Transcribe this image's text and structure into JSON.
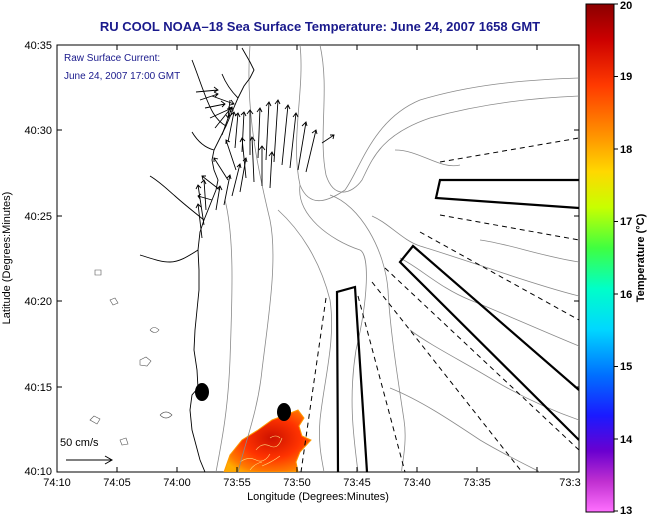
{
  "title": "RU COOL   NOAA–18  Sea Surface Temperature:  June 24, 2007 1658 GMT",
  "legend": {
    "line1": "Raw Surface Current:",
    "line2": "June 24, 2007 17:00 GMT",
    "scale_label": "50 cm/s"
  },
  "axes": {
    "xlabel": "Longitude (Degrees:Minutes)",
    "ylabel": "Latitude (Degrees:Minutes)",
    "x_ticks": [
      "74:10",
      "74:05",
      "74:00",
      "73:55",
      "73:50",
      "73:45",
      "73:40",
      "73:35",
      "73:3"
    ],
    "y_ticks": [
      "40:35",
      "40:30",
      "40:25",
      "40:20",
      "40:15",
      "40:10"
    ]
  },
  "colorbar": {
    "label": "Temperature (°C)",
    "min": 13,
    "max": 20,
    "ticks": [
      "20",
      "19",
      "18",
      "17",
      "16",
      "15",
      "14",
      "13"
    ],
    "colors": [
      "#8b0000",
      "#cc0000",
      "#ff4000",
      "#ff9900",
      "#ffdd00",
      "#aaff00",
      "#33ff66",
      "#00ffdd",
      "#00ccff",
      "#0066ff",
      "#1a1aff",
      "#6600cc",
      "#cc33cc",
      "#ff66ff"
    ]
  },
  "colors": {
    "title": "#1a1a8c",
    "sst_patch": "#ff3300"
  }
}
